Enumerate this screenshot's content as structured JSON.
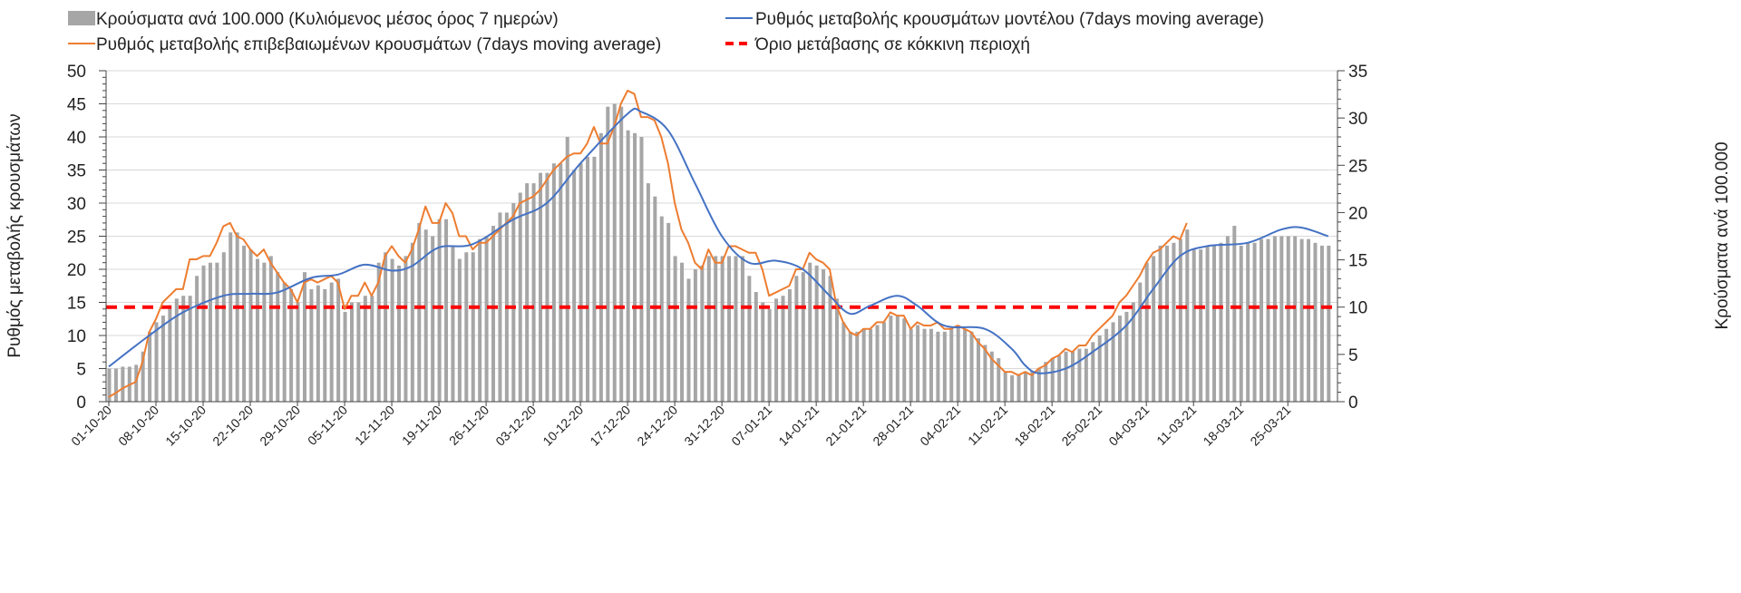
{
  "chart_data": {
    "type": "bar+line",
    "title": "",
    "x_start_date": "01-10-20",
    "x_tick_labels": [
      "01-10-20",
      "08-10-20",
      "15-10-20",
      "22-10-20",
      "29-10-20",
      "05-11-20",
      "12-11-20",
      "19-11-20",
      "26-11-20",
      "03-12-20",
      "10-12-20",
      "17-12-20",
      "24-12-20",
      "31-12-20",
      "07-01-21",
      "14-01-21",
      "21-01-21",
      "28-01-21",
      "04-02-21",
      "11-02-21",
      "18-02-21",
      "25-02-21",
      "04-03-21",
      "11-03-21",
      "18-03-21",
      "25-03-21"
    ],
    "ylabel_left": "Ρυθμός μεταβολής κρουσμάτων",
    "ylabel_right": "Κρούσματα ανά 100.000",
    "ylim_left": [
      0,
      50
    ],
    "ylim_right": [
      0,
      35
    ],
    "yticks_left": [
      "0",
      "5",
      "10",
      "15",
      "20",
      "25",
      "30",
      "35",
      "40",
      "45",
      "50"
    ],
    "yticks_right": [
      "0",
      "5",
      "10",
      "15",
      "20",
      "25",
      "30",
      "35"
    ],
    "grid": "horizontal",
    "legend_placement": "top",
    "series": [
      {
        "name": "Κρούσματα ανά 100.000 (Κυλιόμενος μέσος όρος 7 ημερών)",
        "type": "bar",
        "axis": "right",
        "color": "#a6a6a6",
        "values": [
          3.5,
          3.5,
          3.7,
          3.7,
          3.9,
          5.3,
          7.4,
          8.4,
          9.1,
          10.2,
          10.9,
          11.2,
          11.2,
          13.3,
          14.4,
          14.7,
          14.7,
          15.8,
          17.9,
          17.9,
          16.5,
          16.1,
          15.1,
          14.7,
          15.4,
          13.7,
          12.6,
          11.9,
          10.5,
          13.7,
          11.9,
          12.3,
          11.9,
          12.6,
          13,
          9.5,
          10.5,
          10.5,
          11.2,
          11.2,
          14.7,
          15.8,
          15.1,
          14.4,
          15.4,
          16.8,
          18.9,
          18.2,
          17.5,
          19.3,
          19.3,
          16.5,
          15.1,
          15.8,
          15.8,
          17.2,
          17.5,
          18.6,
          20,
          20,
          21,
          22.1,
          23.1,
          23.1,
          24.2,
          24.2,
          25.2,
          25.2,
          28,
          24.5,
          25.2,
          25.9,
          25.9,
          28.4,
          31.2,
          31.5,
          31.2,
          28.7,
          28.4,
          28,
          23.1,
          21.7,
          19.6,
          18.9,
          15.4,
          14.7,
          13,
          14,
          14.4,
          15.4,
          15.4,
          15.4,
          15.4,
          15.4,
          15.4,
          13.3,
          11.6,
          10.5,
          9.8,
          10.9,
          11.2,
          11.9,
          13.3,
          13.7,
          14.7,
          14.4,
          14,
          13.3,
          10.9,
          8.4,
          7.4,
          7.4,
          7.7,
          7.7,
          8.1,
          8.4,
          9.1,
          9.1,
          8.8,
          7.7,
          8.1,
          7.7,
          7.7,
          7.4,
          7.4,
          7.7,
          8.1,
          7.7,
          7.4,
          6.7,
          6,
          5.3,
          4.6,
          3.2,
          2.8,
          2.8,
          3.2,
          3.2,
          3.5,
          4.2,
          4.6,
          4.9,
          5.3,
          5.3,
          5.6,
          5.6,
          6.3,
          7,
          7.7,
          8.4,
          9.1,
          9.5,
          10.5,
          12.6,
          14.7,
          15.4,
          16.5,
          16.5,
          16.8,
          17.2,
          18.2,
          16.1,
          16.1,
          16.5,
          16.5,
          16.8,
          17.5,
          18.6,
          16.5,
          16.8,
          16.8,
          17.2,
          17.2,
          17.5,
          17.5,
          17.5,
          17.5,
          17.2,
          17.2,
          16.8,
          16.5,
          16.5
        ]
      },
      {
        "name": "Ρυθμός μεταβολής κρουσμάτων μοντέλου (7days moving average)",
        "type": "line",
        "axis": "left",
        "color": "#4472c4",
        "points": [
          [
            0,
            5.3
          ],
          [
            6,
            10
          ],
          [
            11,
            13.5
          ],
          [
            17,
            16
          ],
          [
            21,
            16.3
          ],
          [
            25,
            16.5
          ],
          [
            30,
            18.7
          ],
          [
            34,
            19.2
          ],
          [
            38,
            20.7
          ],
          [
            42,
            19.8
          ],
          [
            45,
            20.5
          ],
          [
            49,
            23.3
          ],
          [
            54,
            23.8
          ],
          [
            60,
            27.5
          ],
          [
            65,
            30
          ],
          [
            70,
            36
          ],
          [
            77,
            43.5
          ],
          [
            79,
            43.8
          ],
          [
            83,
            41
          ],
          [
            87,
            33
          ],
          [
            91,
            25
          ],
          [
            95,
            21
          ],
          [
            99,
            21.3
          ],
          [
            103,
            20
          ],
          [
            107,
            16
          ],
          [
            110,
            13.3
          ],
          [
            113,
            14.5
          ],
          [
            117,
            16
          ],
          [
            120,
            14.5
          ],
          [
            124,
            11.5
          ],
          [
            130,
            11
          ],
          [
            134,
            8
          ],
          [
            136,
            5.5
          ],
          [
            138,
            4.3
          ],
          [
            142,
            5
          ],
          [
            146,
            7.5
          ],
          [
            151,
            11.5
          ],
          [
            155,
            17
          ],
          [
            159,
            22
          ],
          [
            163,
            23.5
          ],
          [
            169,
            24
          ],
          [
            174,
            26
          ],
          [
            177,
            26.3
          ],
          [
            181,
            25
          ]
        ]
      },
      {
        "name": "Ρυθμός μεταβολής επιβεβαιωμένων κρουσμάτων (7days moving average)",
        "type": "line",
        "axis": "left",
        "color": "#ed7d31",
        "values": [
          0.7,
          1.3,
          2,
          2.5,
          3,
          6,
          10.5,
          12.5,
          15,
          16,
          17,
          17,
          21.5,
          21.5,
          22,
          22,
          24,
          26.5,
          27,
          25,
          24.5,
          23,
          22,
          23,
          21,
          19.5,
          18,
          17,
          15,
          18,
          18.5,
          18,
          18.5,
          19,
          18,
          14,
          16,
          16,
          18,
          16,
          18,
          22,
          23.5,
          22,
          21,
          23,
          26,
          29.5,
          27,
          27,
          30,
          28.5,
          25,
          25,
          23,
          24,
          24,
          25,
          26,
          27,
          28,
          30,
          30.5,
          31,
          32,
          33.5,
          35,
          36,
          37,
          37.5,
          37.5,
          39,
          41.5,
          39,
          39,
          41.5,
          45,
          47,
          46.5,
          43,
          43,
          42.5,
          40,
          36,
          30,
          26,
          24,
          21,
          20,
          23,
          21,
          21,
          23.5,
          23.5,
          23,
          22.5,
          22.5,
          20,
          16,
          16.5,
          17,
          17.5,
          20,
          20,
          22.5,
          21.5,
          21,
          20,
          14.5,
          12,
          10.5,
          10,
          11,
          11,
          12,
          12,
          13.5,
          13,
          13,
          11,
          12,
          11.5,
          11.5,
          12,
          11,
          11,
          11.5,
          11,
          10.5,
          9,
          8,
          6.5,
          5.5,
          4.5,
          4.5,
          4,
          4.5,
          4,
          5,
          5.5,
          6.5,
          7,
          8,
          7.5,
          8.5,
          8.5,
          10,
          11,
          12,
          13,
          15,
          16,
          17.5,
          19,
          21,
          22.5,
          23,
          24,
          25,
          24.5,
          27
        ]
      },
      {
        "name": "Όριο μετάβασης σε κόκκινη περιοχή",
        "type": "threshold",
        "axis": "right",
        "color": "#ff0000",
        "value": 10
      }
    ]
  }
}
